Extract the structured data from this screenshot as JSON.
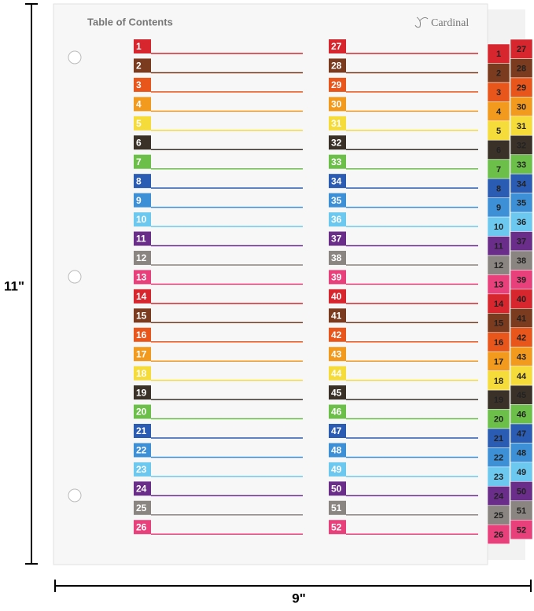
{
  "dimensions": {
    "height": "11\"",
    "width": "9\""
  },
  "page": {
    "title": "Table of Contents",
    "brand": "Cardinal",
    "entries": [
      "1",
      "2",
      "3",
      "4",
      "5",
      "6",
      "7",
      "8",
      "9",
      "10",
      "11",
      "12",
      "13",
      "14",
      "15",
      "16",
      "17",
      "18",
      "19",
      "20",
      "21",
      "22",
      "23",
      "24",
      "25",
      "26",
      "27",
      "28",
      "29",
      "30",
      "31",
      "32",
      "33",
      "34",
      "35",
      "36",
      "37",
      "38",
      "39",
      "40",
      "41",
      "42",
      "43",
      "44",
      "45",
      "46",
      "47",
      "48",
      "49",
      "50",
      "51",
      "52"
    ],
    "colors": [
      "#d7262e",
      "#7a3b1f",
      "#e8561c",
      "#f29a1e",
      "#f5dc3a",
      "#3a3228",
      "#6cc04a",
      "#2b5cb3",
      "#3d8fd6",
      "#6cc8ef",
      "#6a2d8a",
      "#8a8580",
      "#e8407a"
    ]
  }
}
